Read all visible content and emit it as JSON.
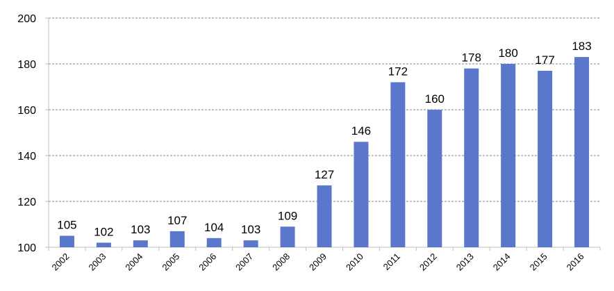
{
  "chart_data": {
    "type": "bar",
    "title": "",
    "xlabel": "",
    "ylabel": "",
    "categories": [
      "2002",
      "2003",
      "2004",
      "2005",
      "2006",
      "2007",
      "2008",
      "2009",
      "2010",
      "2011",
      "2012",
      "2013",
      "2014",
      "2015",
      "2016"
    ],
    "values": [
      105,
      102,
      103,
      107,
      104,
      103,
      109,
      127,
      146,
      172,
      160,
      178,
      180,
      177,
      183
    ],
    "data_labels": [
      "105",
      "102",
      "103",
      "107",
      "104",
      "103",
      "109",
      "127",
      "146",
      "172",
      "160",
      "178",
      "180",
      "177",
      "183"
    ],
    "ylim": [
      100,
      200
    ],
    "yticks": [
      100,
      120,
      140,
      160,
      180,
      200
    ],
    "ytick_labels": [
      "100",
      "120",
      "140",
      "160",
      "180",
      "200"
    ],
    "grid": true,
    "legend": "none",
    "bar_color": "#5B77CC"
  }
}
